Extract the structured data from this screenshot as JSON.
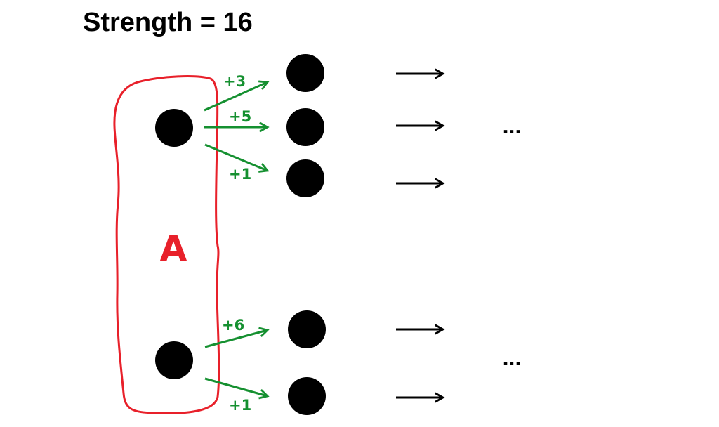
{
  "title": "Strength = 16",
  "group": {
    "label": "A",
    "color": "#e8202a"
  },
  "edge_color": "#159030",
  "node_color": "#000000",
  "edges": [
    {
      "weight": "+3"
    },
    {
      "weight": "+5"
    },
    {
      "weight": "+1"
    },
    {
      "weight": "+6"
    },
    {
      "weight": "+1"
    }
  ],
  "ellipses": [
    "...",
    "..."
  ],
  "arrow_glyph": "⟶"
}
